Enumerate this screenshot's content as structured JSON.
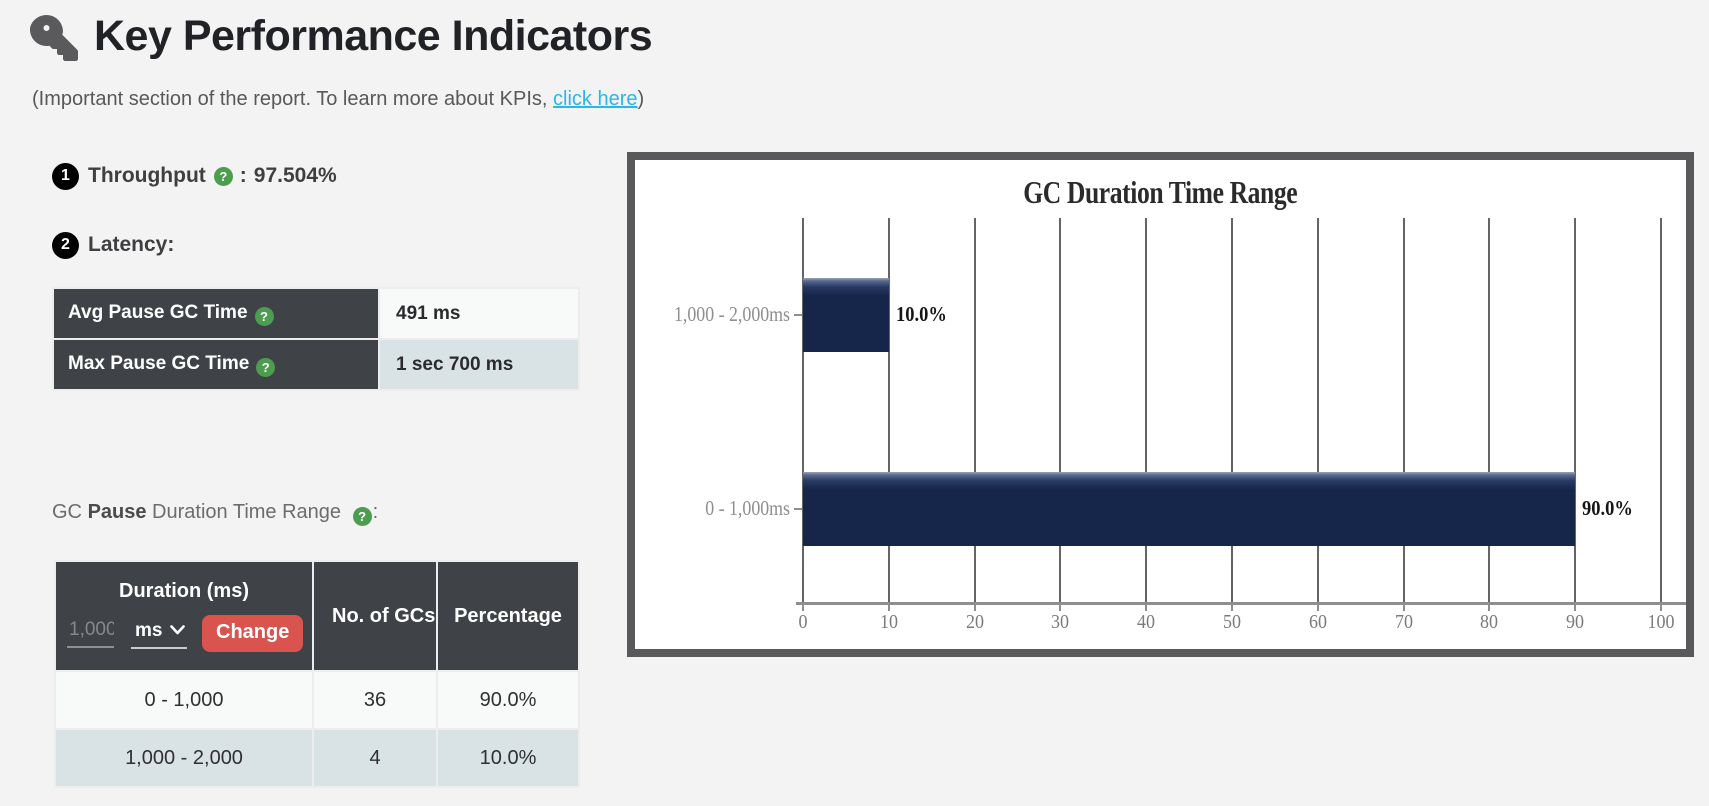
{
  "page": {
    "title": "Key Performance Indicators",
    "subtitle_prefix": "(Important section of the report. To learn more about KPIs, ",
    "subtitle_link_text": "click here",
    "subtitle_suffix": ")"
  },
  "icons": {
    "help_glyph": "?",
    "key_icon": "key",
    "chevron_icon": "chevron-down"
  },
  "kpis": {
    "throughput_step": "1",
    "throughput_label": "Throughput",
    "throughput_separator": ":",
    "throughput_value": "97.504%",
    "latency_step": "2",
    "latency_label": "Latency:"
  },
  "latency_table": {
    "rows": [
      {
        "label": "Avg Pause GC Time",
        "value": "491 ms"
      },
      {
        "label": "Max Pause GC Time",
        "value": "1 sec 700 ms"
      }
    ]
  },
  "gc_pause_range": {
    "prefix": "GC ",
    "bold": "Pause",
    "suffix": " Duration Time Range ",
    "colon": ":"
  },
  "duration_table": {
    "headers": {
      "col1": "Duration (ms)",
      "col2": "No. of GCs",
      "col3": "Percentage"
    },
    "input_value": "1,000",
    "unit_selected": "ms",
    "change_button_label": "Change",
    "rows": [
      {
        "duration": "0 - 1,000",
        "gcs": "36",
        "percentage": "90.0%"
      },
      {
        "duration": "1,000 - 2,000",
        "gcs": "4",
        "percentage": "10.0%"
      }
    ]
  },
  "chart_data": {
    "type": "bar",
    "orientation": "horizontal",
    "title": "GC Duration Time Range",
    "categories": [
      "1,000 - 2,000ms",
      "0 - 1,000ms"
    ],
    "values": [
      10.0,
      90.0
    ],
    "value_labels": [
      "10.0%",
      "90.0%"
    ],
    "xlabel": "",
    "ylabel": "",
    "xlim": [
      0,
      100
    ],
    "x_ticks": [
      0,
      10,
      20,
      30,
      40,
      50,
      60,
      70,
      80,
      90,
      100
    ],
    "grid": true,
    "legend": false,
    "bar_color": "#16254a"
  },
  "colors": {
    "header_dark": "#3f4347",
    "row_light": "#f8f9f9",
    "row_alt": "#d9e2e5",
    "change_button_red": "#d9534f",
    "link_blue": "#29b7e8",
    "help_green": "#4d9d50",
    "bar_navy": "#16254a",
    "chart_border": "#59595b"
  }
}
